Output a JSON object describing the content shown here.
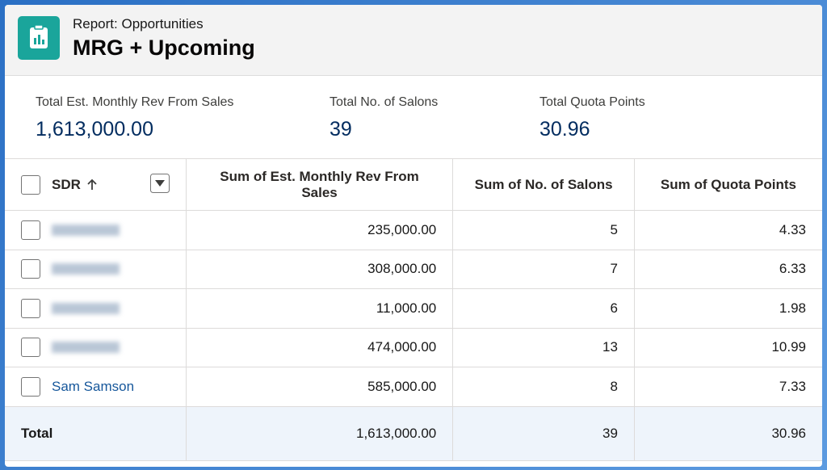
{
  "header": {
    "subtitle": "Report: Opportunities",
    "title": "MRG + Upcoming"
  },
  "summary": [
    {
      "label": "Total Est. Monthly Rev From Sales",
      "value": "1,613,000.00"
    },
    {
      "label": "Total No. of Salons",
      "value": "39"
    },
    {
      "label": "Total Quota Points",
      "value": "30.96"
    }
  ],
  "table": {
    "columns": [
      "SDR",
      "Sum of Est. Monthly Rev From Sales",
      "Sum of No. of Salons",
      "Sum of Quota Points"
    ],
    "rows": [
      [
        null,
        "235,000.00",
        "5",
        "4.33"
      ],
      [
        null,
        "308,000.00",
        "7",
        "6.33"
      ],
      [
        null,
        "11,000.00",
        "6",
        "1.98"
      ],
      [
        null,
        "474,000.00",
        "13",
        "10.99"
      ],
      [
        "Sam Samson",
        "585,000.00",
        "8",
        "7.33"
      ]
    ],
    "total": [
      "Total",
      "1,613,000.00",
      "39",
      "30.96"
    ]
  }
}
